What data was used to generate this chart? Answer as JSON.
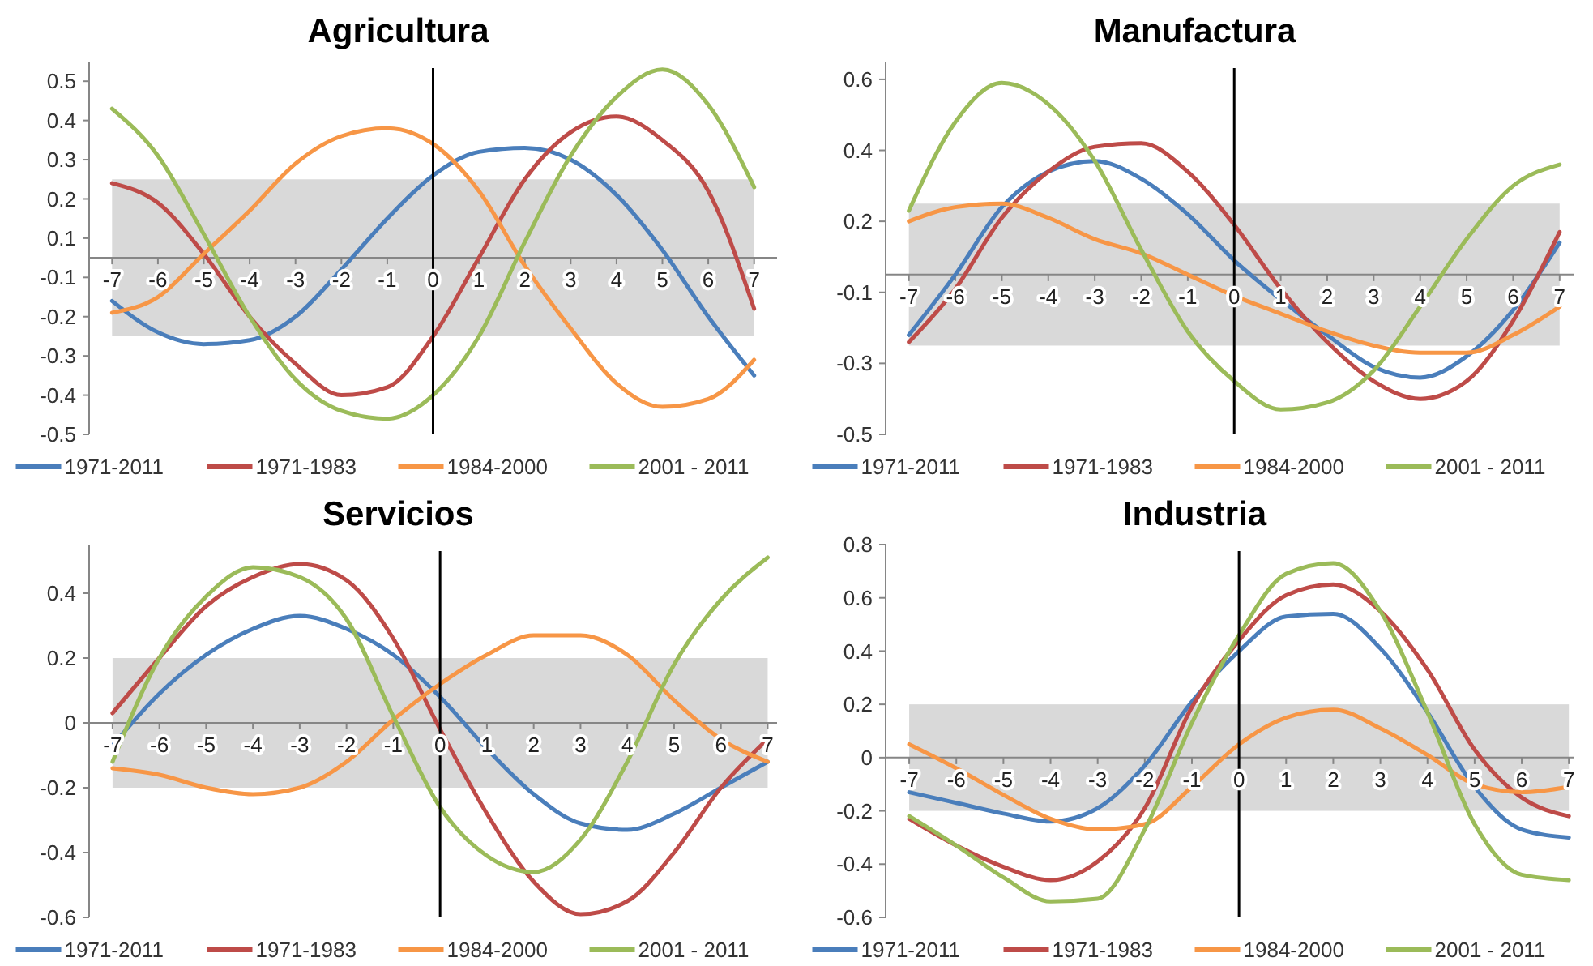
{
  "chart_data": [
    {
      "type": "line",
      "title": "Agricultura",
      "legend": "bottom",
      "x": [
        -7,
        -6,
        -5,
        -4,
        -3,
        -2,
        -1,
        0,
        1,
        2,
        3,
        4,
        5,
        6,
        7
      ],
      "xlim": [
        -7.5,
        7.5
      ],
      "xticks": [
        -7,
        -6,
        -5,
        -4,
        -3,
        -2,
        -1,
        0,
        1,
        2,
        3,
        4,
        5,
        6,
        7
      ],
      "ylim": [
        -0.45,
        0.5
      ],
      "yticks": [
        {
          "value": -0.45,
          "label": "-0.5"
        },
        {
          "value": -0.35,
          "label": "-0.4"
        },
        {
          "value": -0.25,
          "label": "-0.3"
        },
        {
          "value": -0.15,
          "label": "-0.2"
        },
        {
          "value": -0.05,
          "label": "-0.1"
        },
        {
          "value": 0.05,
          "label": "0.1"
        },
        {
          "value": 0.15,
          "label": "0.2"
        },
        {
          "value": 0.25,
          "label": "0.3"
        },
        {
          "value": 0.35,
          "label": "0.4"
        },
        {
          "value": 0.45,
          "label": "0.5"
        }
      ],
      "bands": [
        {
          "axis": "y",
          "from": -0.2,
          "to": 0.2,
          "color": "#d9d9d9"
        }
      ],
      "ref_lines": [
        {
          "axis": "x",
          "value": 0,
          "color": "#000000"
        }
      ],
      "series": [
        {
          "name": "1971-2011",
          "color": "#4a7ebb",
          "values": [
            -0.11,
            -0.19,
            -0.22,
            -0.21,
            -0.15,
            -0.03,
            0.1,
            0.21,
            0.27,
            0.28,
            0.25,
            0.16,
            0.02,
            -0.15,
            -0.3
          ]
        },
        {
          "name": "1971-1983",
          "color": "#be4b48",
          "values": [
            0.19,
            0.14,
            0.01,
            -0.15,
            -0.27,
            -0.35,
            -0.33,
            -0.2,
            0,
            0.2,
            0.32,
            0.36,
            0.3,
            0.17,
            -0.13
          ]
        },
        {
          "name": "1984-2000",
          "color": "#f79646",
          "values": [
            -0.14,
            -0.1,
            0.01,
            0.12,
            0.24,
            0.31,
            0.33,
            0.29,
            0.17,
            -0.02,
            -0.18,
            -0.32,
            -0.38,
            -0.36,
            -0.26
          ]
        },
        {
          "name": "2001 - 2011",
          "color": "#9bbb59",
          "values": [
            0.38,
            0.26,
            0.06,
            -0.15,
            -0.31,
            -0.39,
            -0.41,
            -0.35,
            -0.2,
            0.04,
            0.26,
            0.41,
            0.48,
            0.39,
            0.18
          ]
        }
      ]
    },
    {
      "type": "line",
      "title": "Manufactura",
      "legend": "bottom",
      "x": [
        -7,
        -6,
        -5,
        -4,
        -3,
        -2,
        -1,
        0,
        1,
        2,
        3,
        4,
        5,
        6,
        7
      ],
      "xlim": [
        -7.5,
        7.3
      ],
      "xticks": [
        -7,
        -6,
        -5,
        -4,
        -3,
        -2,
        -1,
        0,
        1,
        2,
        3,
        4,
        5,
        6,
        7
      ],
      "ylim": [
        -0.45,
        0.6
      ],
      "yticks": [
        {
          "value": -0.45,
          "label": "-0.5"
        },
        {
          "value": -0.25,
          "label": "-0.3"
        },
        {
          "value": -0.05,
          "label": "-0.1"
        },
        {
          "value": 0.15,
          "label": "0.2"
        },
        {
          "value": 0.35,
          "label": "0.4"
        },
        {
          "value": 0.55,
          "label": "0.6"
        }
      ],
      "bands": [
        {
          "axis": "y",
          "from": -0.2,
          "to": 0.2,
          "color": "#d9d9d9"
        }
      ],
      "ref_lines": [
        {
          "axis": "x",
          "value": 0,
          "color": "#000000"
        }
      ],
      "series": [
        {
          "name": "1971-2011",
          "color": "#4a7ebb",
          "values": [
            -0.17,
            0,
            0.19,
            0.29,
            0.32,
            0.27,
            0.17,
            0.04,
            -0.07,
            -0.17,
            -0.26,
            -0.29,
            -0.23,
            -0.1,
            0.09
          ]
        },
        {
          "name": "1971-1983",
          "color": "#be4b48",
          "values": [
            -0.19,
            -0.04,
            0.16,
            0.29,
            0.36,
            0.37,
            0.29,
            0.14,
            -0.04,
            -0.19,
            -0.3,
            -0.35,
            -0.3,
            -0.13,
            0.12
          ]
        },
        {
          "name": "1984-2000",
          "color": "#f79646",
          "values": [
            0.15,
            0.19,
            0.2,
            0.16,
            0.1,
            0.06,
            0,
            -0.06,
            -0.11,
            -0.16,
            -0.2,
            -0.22,
            -0.22,
            -0.17,
            -0.09
          ]
        },
        {
          "name": "2001 - 2011",
          "color": "#9bbb59",
          "values": [
            0.18,
            0.43,
            0.54,
            0.48,
            0.32,
            0.07,
            -0.16,
            -0.3,
            -0.38,
            -0.36,
            -0.27,
            -0.09,
            0.1,
            0.25,
            0.31
          ]
        }
      ]
    },
    {
      "type": "line",
      "title": "Servicios",
      "legend": "bottom",
      "x": [
        -7,
        -6,
        -5,
        -4,
        -3,
        -2,
        -1,
        0,
        1,
        2,
        3,
        4,
        5,
        6,
        7
      ],
      "xlim": [
        -7.5,
        7.2
      ],
      "xticks": [
        -7,
        -6,
        -5,
        -4,
        -3,
        -2,
        -1,
        0,
        1,
        2,
        3,
        4,
        5,
        6,
        7
      ],
      "ylim": [
        -0.6,
        0.55
      ],
      "yticks": [
        -0.6,
        -0.4,
        -0.2,
        0,
        0.2,
        0.4
      ],
      "bands": [
        {
          "axis": "y",
          "from": -0.2,
          "to": 0.2,
          "color": "#d9d9d9"
        }
      ],
      "ref_lines": [
        {
          "axis": "x",
          "value": 0,
          "color": "#000000"
        }
      ],
      "series": [
        {
          "name": "1971-2011",
          "color": "#4a7ebb",
          "values": [
            -0.07,
            0.09,
            0.21,
            0.29,
            0.33,
            0.29,
            0.21,
            0.08,
            -0.08,
            -0.22,
            -0.31,
            -0.33,
            -0.28,
            -0.2,
            -0.12
          ]
        },
        {
          "name": "1971-1983",
          "color": "#be4b48",
          "values": [
            0.03,
            0.2,
            0.36,
            0.45,
            0.49,
            0.44,
            0.26,
            -0.02,
            -0.28,
            -0.49,
            -0.59,
            -0.55,
            -0.4,
            -0.2,
            -0.05
          ]
        },
        {
          "name": "1984-2000",
          "color": "#f79646",
          "values": [
            -0.14,
            -0.16,
            -0.2,
            -0.22,
            -0.2,
            -0.12,
            0.01,
            0.12,
            0.21,
            0.27,
            0.27,
            0.21,
            0.07,
            -0.05,
            -0.12
          ]
        },
        {
          "name": "2001 - 2011",
          "color": "#9bbb59",
          "values": [
            -0.12,
            0.2,
            0.39,
            0.48,
            0.45,
            0.32,
            0.02,
            -0.26,
            -0.41,
            -0.46,
            -0.36,
            -0.12,
            0.18,
            0.38,
            0.51
          ]
        }
      ]
    },
    {
      "type": "line",
      "title": "Industria",
      "legend": "bottom",
      "x": [
        -7,
        -6,
        -5,
        -4,
        -3,
        -2,
        -1,
        0,
        1,
        2,
        3,
        4,
        5,
        6,
        7
      ],
      "xlim": [
        -7.5,
        7.1
      ],
      "xticks": [
        -7,
        -6,
        -5,
        -4,
        -3,
        -2,
        -1,
        0,
        1,
        2,
        3,
        4,
        5,
        6,
        7
      ],
      "ylim": [
        -0.6,
        0.8
      ],
      "yticks": [
        -0.6,
        -0.4,
        -0.2,
        0,
        0.2,
        0.4,
        0.6,
        0.8
      ],
      "bands": [
        {
          "axis": "y",
          "from": -0.2,
          "to": 0.2,
          "color": "#d9d9d9"
        }
      ],
      "ref_lines": [
        {
          "axis": "x",
          "value": 0,
          "color": "#000000"
        }
      ],
      "series": [
        {
          "name": "1971-2011",
          "color": "#4a7ebb",
          "values": [
            -0.13,
            -0.17,
            -0.21,
            -0.24,
            -0.19,
            -0.03,
            0.21,
            0.4,
            0.53,
            0.54,
            0.41,
            0.17,
            -0.11,
            -0.27,
            -0.3
          ]
        },
        {
          "name": "1971-1983",
          "color": "#be4b48",
          "values": [
            -0.23,
            -0.33,
            -0.41,
            -0.46,
            -0.39,
            -0.19,
            0.19,
            0.44,
            0.61,
            0.65,
            0.55,
            0.33,
            0.03,
            -0.15,
            -0.22
          ]
        },
        {
          "name": "1984-2000",
          "color": "#f79646",
          "values": [
            0.05,
            -0.04,
            -0.14,
            -0.23,
            -0.27,
            -0.25,
            -0.11,
            0.05,
            0.15,
            0.18,
            0.11,
            0.01,
            -0.1,
            -0.13,
            -0.11
          ]
        },
        {
          "name": "2001 - 2011",
          "color": "#9bbb59",
          "values": [
            -0.22,
            -0.33,
            -0.45,
            -0.54,
            -0.53,
            -0.27,
            0.13,
            0.46,
            0.69,
            0.73,
            0.55,
            0.17,
            -0.25,
            -0.44,
            -0.46
          ]
        }
      ]
    }
  ]
}
